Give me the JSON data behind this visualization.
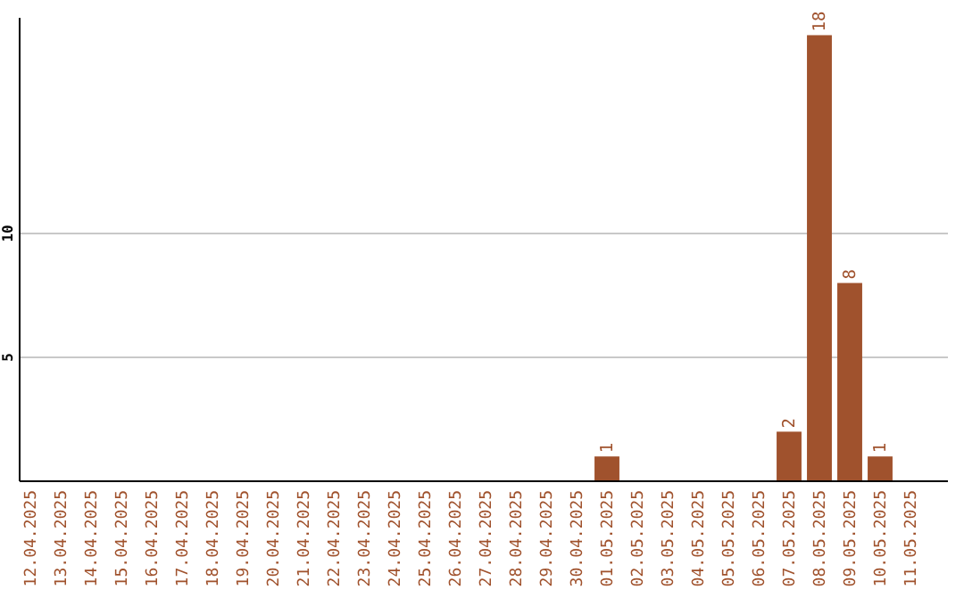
{
  "chart_data": {
    "type": "bar",
    "categories": [
      "12.04.2025",
      "13.04.2025",
      "14.04.2025",
      "15.04.2025",
      "16.04.2025",
      "17.04.2025",
      "18.04.2025",
      "19.04.2025",
      "20.04.2025",
      "21.04.2025",
      "22.04.2025",
      "23.04.2025",
      "24.04.2025",
      "25.04.2025",
      "26.04.2025",
      "27.04.2025",
      "28.04.2025",
      "29.04.2025",
      "30.04.2025",
      "01.05.2025",
      "02.05.2025",
      "03.05.2025",
      "04.05.2025",
      "05.05.2025",
      "06.05.2025",
      "07.05.2025",
      "08.05.2025",
      "09.05.2025",
      "10.05.2025",
      "11.05.2025"
    ],
    "values": [
      0,
      0,
      0,
      0,
      0,
      0,
      0,
      0,
      0,
      0,
      0,
      0,
      0,
      0,
      0,
      0,
      0,
      0,
      0,
      1,
      0,
      0,
      0,
      0,
      0,
      2,
      18,
      8,
      1,
      0
    ],
    "value_labels": [
      null,
      null,
      null,
      null,
      null,
      null,
      null,
      null,
      null,
      null,
      null,
      null,
      null,
      null,
      null,
      null,
      null,
      null,
      null,
      "1",
      null,
      null,
      null,
      null,
      null,
      "2",
      "18",
      "8",
      "1",
      null
    ],
    "color": "#a0522d",
    "ylim": [
      0,
      18.7
    ],
    "yticks": [
      5,
      10
    ],
    "grid": "y"
  }
}
